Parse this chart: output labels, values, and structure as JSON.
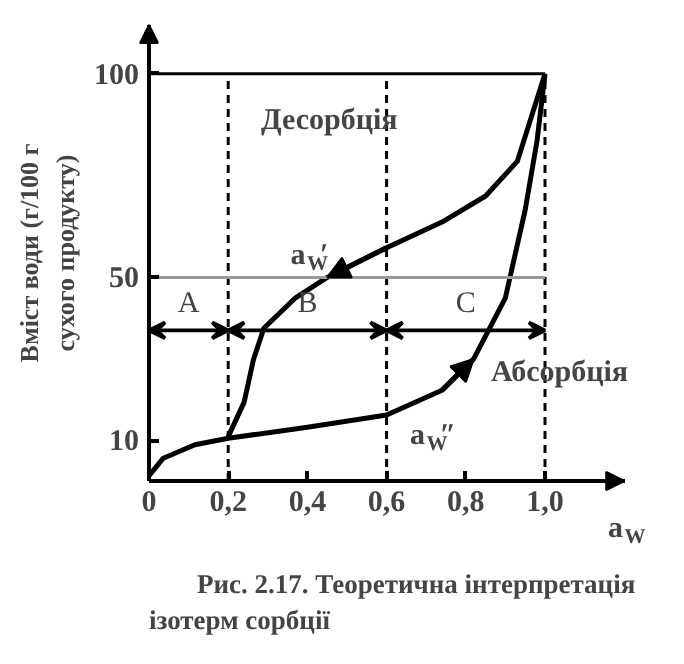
{
  "chart_data": {
    "type": "line",
    "xlabel": "a$_{W}$",
    "ylabel": "Вміст води (г/100 г\nсухого продукту)",
    "xlim": [
      0,
      1.2
    ],
    "ylim": [
      0,
      112
    ],
    "xticks": [
      0,
      {
        "value": 0.2,
        "label": "0,2"
      },
      {
        "value": 0.4,
        "label": "0,4"
      },
      {
        "value": 0.6,
        "label": "0,6"
      },
      {
        "value": 0.8,
        "label": "0,8"
      },
      {
        "value": 1.0,
        "label": "1,0"
      }
    ],
    "yticks": [
      10,
      50,
      100
    ],
    "grid": false,
    "marker": "none",
    "line_style": "solid",
    "series": [
      {
        "name": "a$_{W}$′",
        "color": "#000000",
        "x": [
          0.2,
          0.24,
          0.264,
          0.29,
          0.37,
          0.45,
          0.6,
          0.74,
          0.85,
          0.93,
          1.0
        ],
        "values": [
          10.9,
          19.3,
          29.9,
          37.5,
          45,
          50,
          57.3,
          63.6,
          70,
          78.5,
          100
        ]
      },
      {
        "name": "a$_{W}$″",
        "color": "#000000",
        "x": [
          0,
          0.036,
          0.116,
          0.2,
          0.4,
          0.6,
          0.74,
          0.82,
          0.9,
          0.95,
          0.98,
          1.0
        ],
        "values": [
          1.3,
          5.6,
          8.9,
          10.5,
          13.2,
          16.2,
          22.3,
          30,
          45,
          66.6,
          83.6,
          100
        ]
      }
    ],
    "ref_lines": [
      {
        "axis": "x",
        "value": 0.2,
        "color": "#000000",
        "line_style": "dashed"
      },
      {
        "axis": "x",
        "value": 0.6,
        "color": "#000000",
        "line_style": "dashed"
      },
      {
        "axis": "x",
        "value": 1.0,
        "color": "#000000",
        "line_style": "dashed"
      },
      {
        "axis": "y",
        "value": 50,
        "color": "#999999",
        "line_style": "solid"
      },
      {
        "axis": "y",
        "value": 100,
        "color": "#000000",
        "line_style": "solid"
      }
    ],
    "annotations": [
      "Десорбція",
      "Абсорбція",
      "A",
      "B",
      "C",
      "Рис. 2.17. Теоретична інтерпретація ізотерм сорбції"
    ]
  }
}
